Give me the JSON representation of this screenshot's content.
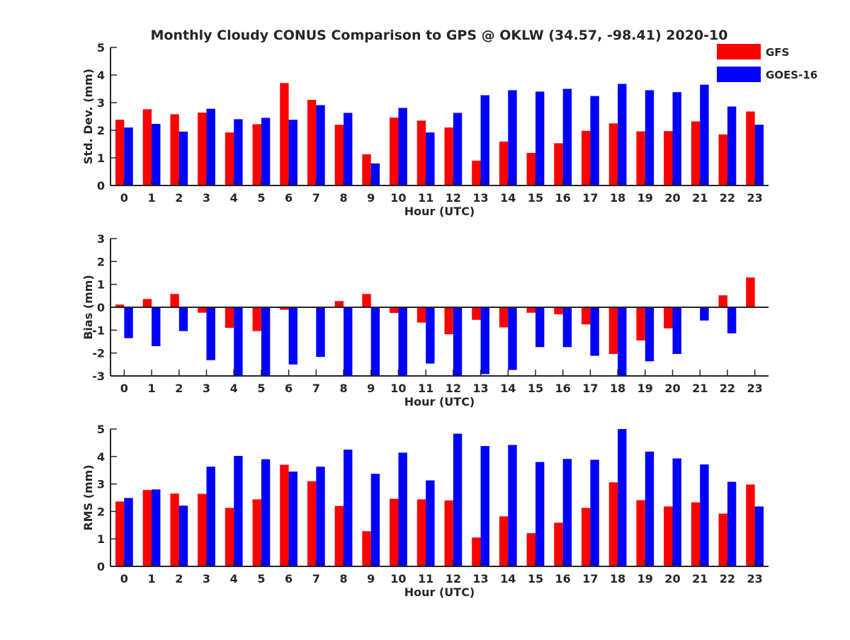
{
  "title": "Monthly Cloudy CONUS Comparison to GPS @ OKLW (34.57, -98.41) 2020-10",
  "colors": {
    "GFS": "#ff0000",
    "GOES-16": "#0000ff",
    "axis": "#262626"
  },
  "chart_data": [
    {
      "type": "bar",
      "ylabel": "Std. Dev. (mm)",
      "xlabel": "Hour (UTC)",
      "ylim": [
        0,
        5
      ],
      "yticks": [
        0,
        1,
        2,
        3,
        4,
        5
      ],
      "categories": [
        "0",
        "1",
        "2",
        "3",
        "4",
        "5",
        "6",
        "7",
        "8",
        "9",
        "10",
        "11",
        "12",
        "13",
        "14",
        "15",
        "16",
        "17",
        "18",
        "19",
        "20",
        "21",
        "22",
        "23"
      ],
      "legend": "top-right",
      "series": [
        {
          "name": "GFS",
          "values": [
            2.38,
            2.76,
            2.58,
            2.64,
            1.92,
            2.22,
            3.71,
            3.1,
            2.2,
            1.13,
            2.46,
            2.35,
            2.1,
            0.9,
            1.59,
            1.18,
            1.53,
            1.98,
            2.25,
            1.96,
            1.97,
            2.32,
            1.85,
            2.68
          ]
        },
        {
          "name": "GOES-16",
          "values": [
            2.1,
            2.23,
            1.95,
            2.78,
            2.4,
            2.45,
            2.38,
            2.91,
            2.63,
            0.8,
            2.81,
            1.92,
            2.63,
            3.27,
            3.45,
            3.4,
            3.5,
            3.24,
            3.68,
            3.45,
            3.38,
            3.65,
            2.86,
            2.2
          ]
        }
      ]
    },
    {
      "type": "bar",
      "ylabel": "Bias (mm)",
      "xlabel": "Hour (UTC)",
      "ylim": [
        -3,
        3
      ],
      "yticks": [
        -3,
        -2,
        -1,
        0,
        1,
        2,
        3
      ],
      "categories": [
        "0",
        "1",
        "2",
        "3",
        "4",
        "5",
        "6",
        "7",
        "8",
        "9",
        "10",
        "11",
        "12",
        "13",
        "14",
        "15",
        "16",
        "17",
        "18",
        "19",
        "20",
        "21",
        "22",
        "23"
      ],
      "series": [
        {
          "name": "GFS",
          "values": [
            0.12,
            0.36,
            0.58,
            -0.24,
            -0.9,
            -1.04,
            -0.11,
            0,
            0.27,
            0.58,
            -0.25,
            -0.67,
            -1.18,
            -0.55,
            -0.88,
            -0.24,
            -0.31,
            -0.75,
            -2.04,
            -1.45,
            -0.92,
            0,
            0.52,
            1.3
          ]
        },
        {
          "name": "GOES-16",
          "values": [
            -1.35,
            -1.7,
            -1.04,
            -2.31,
            -3.0,
            -3.0,
            -2.5,
            -2.17,
            -3.0,
            -3.0,
            -3.0,
            -2.46,
            -3.0,
            -2.92,
            -2.74,
            -1.74,
            -1.74,
            -2.12,
            -3.0,
            -2.36,
            -2.04,
            -0.58,
            -1.14,
            0
          ]
        }
      ]
    },
    {
      "type": "bar",
      "ylabel": "RMS (mm)",
      "xlabel": "Hour (UTC)",
      "ylim": [
        0,
        5
      ],
      "yticks": [
        0,
        1,
        2,
        3,
        4,
        5
      ],
      "categories": [
        "0",
        "1",
        "2",
        "3",
        "4",
        "5",
        "6",
        "7",
        "8",
        "9",
        "10",
        "11",
        "12",
        "13",
        "14",
        "15",
        "16",
        "17",
        "18",
        "19",
        "20",
        "21",
        "22",
        "23"
      ],
      "series": [
        {
          "name": "GFS",
          "values": [
            2.36,
            2.78,
            2.65,
            2.64,
            2.13,
            2.44,
            3.7,
            3.1,
            2.2,
            1.28,
            2.46,
            2.44,
            2.4,
            1.05,
            1.82,
            1.21,
            1.59,
            2.13,
            3.06,
            2.41,
            2.18,
            2.33,
            1.92,
            2.98
          ]
        },
        {
          "name": "GOES-16",
          "values": [
            2.49,
            2.8,
            2.21,
            3.63,
            4.02,
            3.9,
            3.45,
            3.63,
            4.25,
            3.37,
            4.14,
            3.13,
            4.83,
            4.38,
            4.42,
            3.8,
            3.91,
            3.88,
            5.0,
            4.18,
            3.93,
            3.71,
            3.08,
            2.18
          ]
        }
      ]
    }
  ]
}
